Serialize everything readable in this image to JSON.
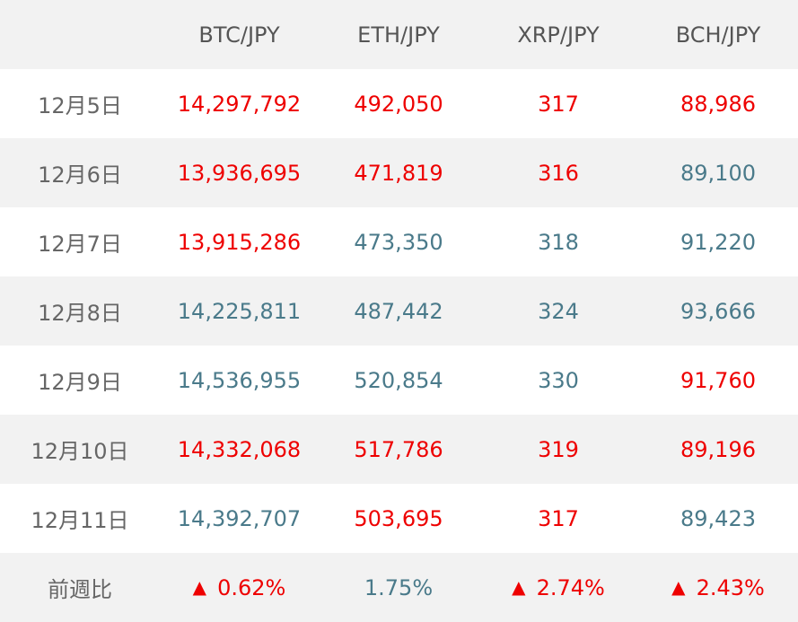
{
  "colors": {
    "up": "#ee0000",
    "down": "#4a7a8a"
  },
  "headers": [
    "",
    "BTC/JPY",
    "ETH/JPY",
    "XRP/JPY",
    "BCH/JPY"
  ],
  "rows": [
    {
      "date": "12月5日",
      "values": [
        "14,297,792",
        "492,050",
        "317",
        "88,986"
      ],
      "dir": [
        "up",
        "up",
        "up",
        "up"
      ]
    },
    {
      "date": "12月6日",
      "values": [
        "13,936,695",
        "471,819",
        "316",
        "89,100"
      ],
      "dir": [
        "up",
        "up",
        "up",
        "down"
      ]
    },
    {
      "date": "12月7日",
      "values": [
        "13,915,286",
        "473,350",
        "318",
        "91,220"
      ],
      "dir": [
        "up",
        "down",
        "down",
        "down"
      ]
    },
    {
      "date": "12月8日",
      "values": [
        "14,225,811",
        "487,442",
        "324",
        "93,666"
      ],
      "dir": [
        "down",
        "down",
        "down",
        "down"
      ]
    },
    {
      "date": "12月9日",
      "values": [
        "14,536,955",
        "520,854",
        "330",
        "91,760"
      ],
      "dir": [
        "down",
        "down",
        "down",
        "up"
      ]
    },
    {
      "date": "12月10日",
      "values": [
        "14,332,068",
        "517,786",
        "319",
        "89,196"
      ],
      "dir": [
        "up",
        "up",
        "up",
        "up"
      ]
    },
    {
      "date": "12月11日",
      "values": [
        "14,392,707",
        "503,695",
        "317",
        "89,423"
      ],
      "dir": [
        "down",
        "up",
        "up",
        "down"
      ]
    }
  ],
  "footer": {
    "label": "前週比",
    "cells": [
      {
        "arrow": "▲",
        "value": "0.62%",
        "dir": "up"
      },
      {
        "arrow": "",
        "value": "1.75%",
        "dir": "down"
      },
      {
        "arrow": "▲",
        "value": "2.74%",
        "dir": "up"
      },
      {
        "arrow": "▲",
        "value": "2.43%",
        "dir": "up"
      }
    ]
  }
}
